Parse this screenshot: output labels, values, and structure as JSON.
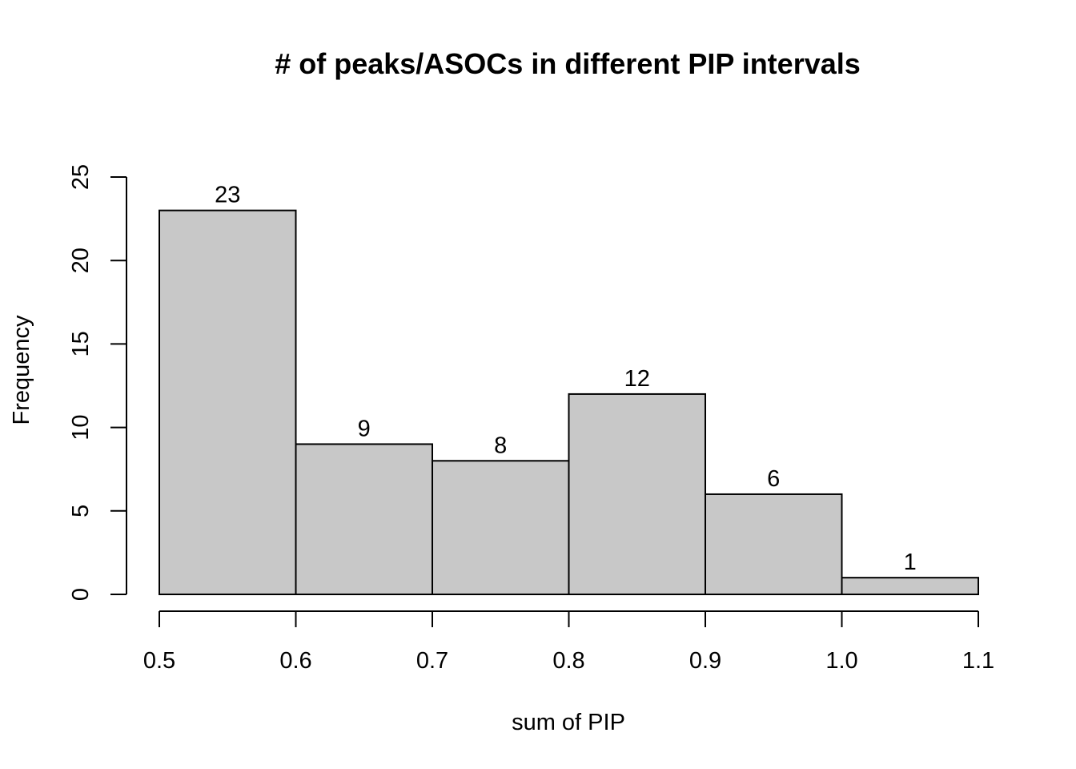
{
  "chart_data": {
    "type": "bar",
    "title": "# of peaks/ASOCs in different PIP intervals",
    "xlabel": "sum of PIP",
    "ylabel": "Frequency",
    "bins": [
      {
        "start": 0.5,
        "end": 0.6,
        "value": 23,
        "label": "23"
      },
      {
        "start": 0.6,
        "end": 0.7,
        "value": 9,
        "label": "9"
      },
      {
        "start": 0.7,
        "end": 0.8,
        "value": 8,
        "label": "8"
      },
      {
        "start": 0.8,
        "end": 0.9,
        "value": 12,
        "label": "12"
      },
      {
        "start": 0.9,
        "end": 1.0,
        "value": 6,
        "label": "6"
      },
      {
        "start": 1.0,
        "end": 1.1,
        "value": 1,
        "label": "1"
      }
    ],
    "xlim": [
      0.5,
      1.1
    ],
    "ylim": [
      0,
      25
    ],
    "x_ticks": [
      {
        "value": 0.5,
        "label": "0.5"
      },
      {
        "value": 0.6,
        "label": "0.6"
      },
      {
        "value": 0.7,
        "label": "0.7"
      },
      {
        "value": 0.8,
        "label": "0.8"
      },
      {
        "value": 0.9,
        "label": "0.9"
      },
      {
        "value": 1.0,
        "label": "1.0"
      },
      {
        "value": 1.1,
        "label": "1.1"
      }
    ],
    "y_ticks": [
      {
        "value": 0,
        "label": "0"
      },
      {
        "value": 5,
        "label": "5"
      },
      {
        "value": 10,
        "label": "10"
      },
      {
        "value": 15,
        "label": "15"
      },
      {
        "value": 20,
        "label": "20"
      },
      {
        "value": 25,
        "label": "25"
      }
    ],
    "grid": false,
    "colors": {
      "bar_fill": "#c8c8c8",
      "bar_stroke": "#000000"
    }
  }
}
